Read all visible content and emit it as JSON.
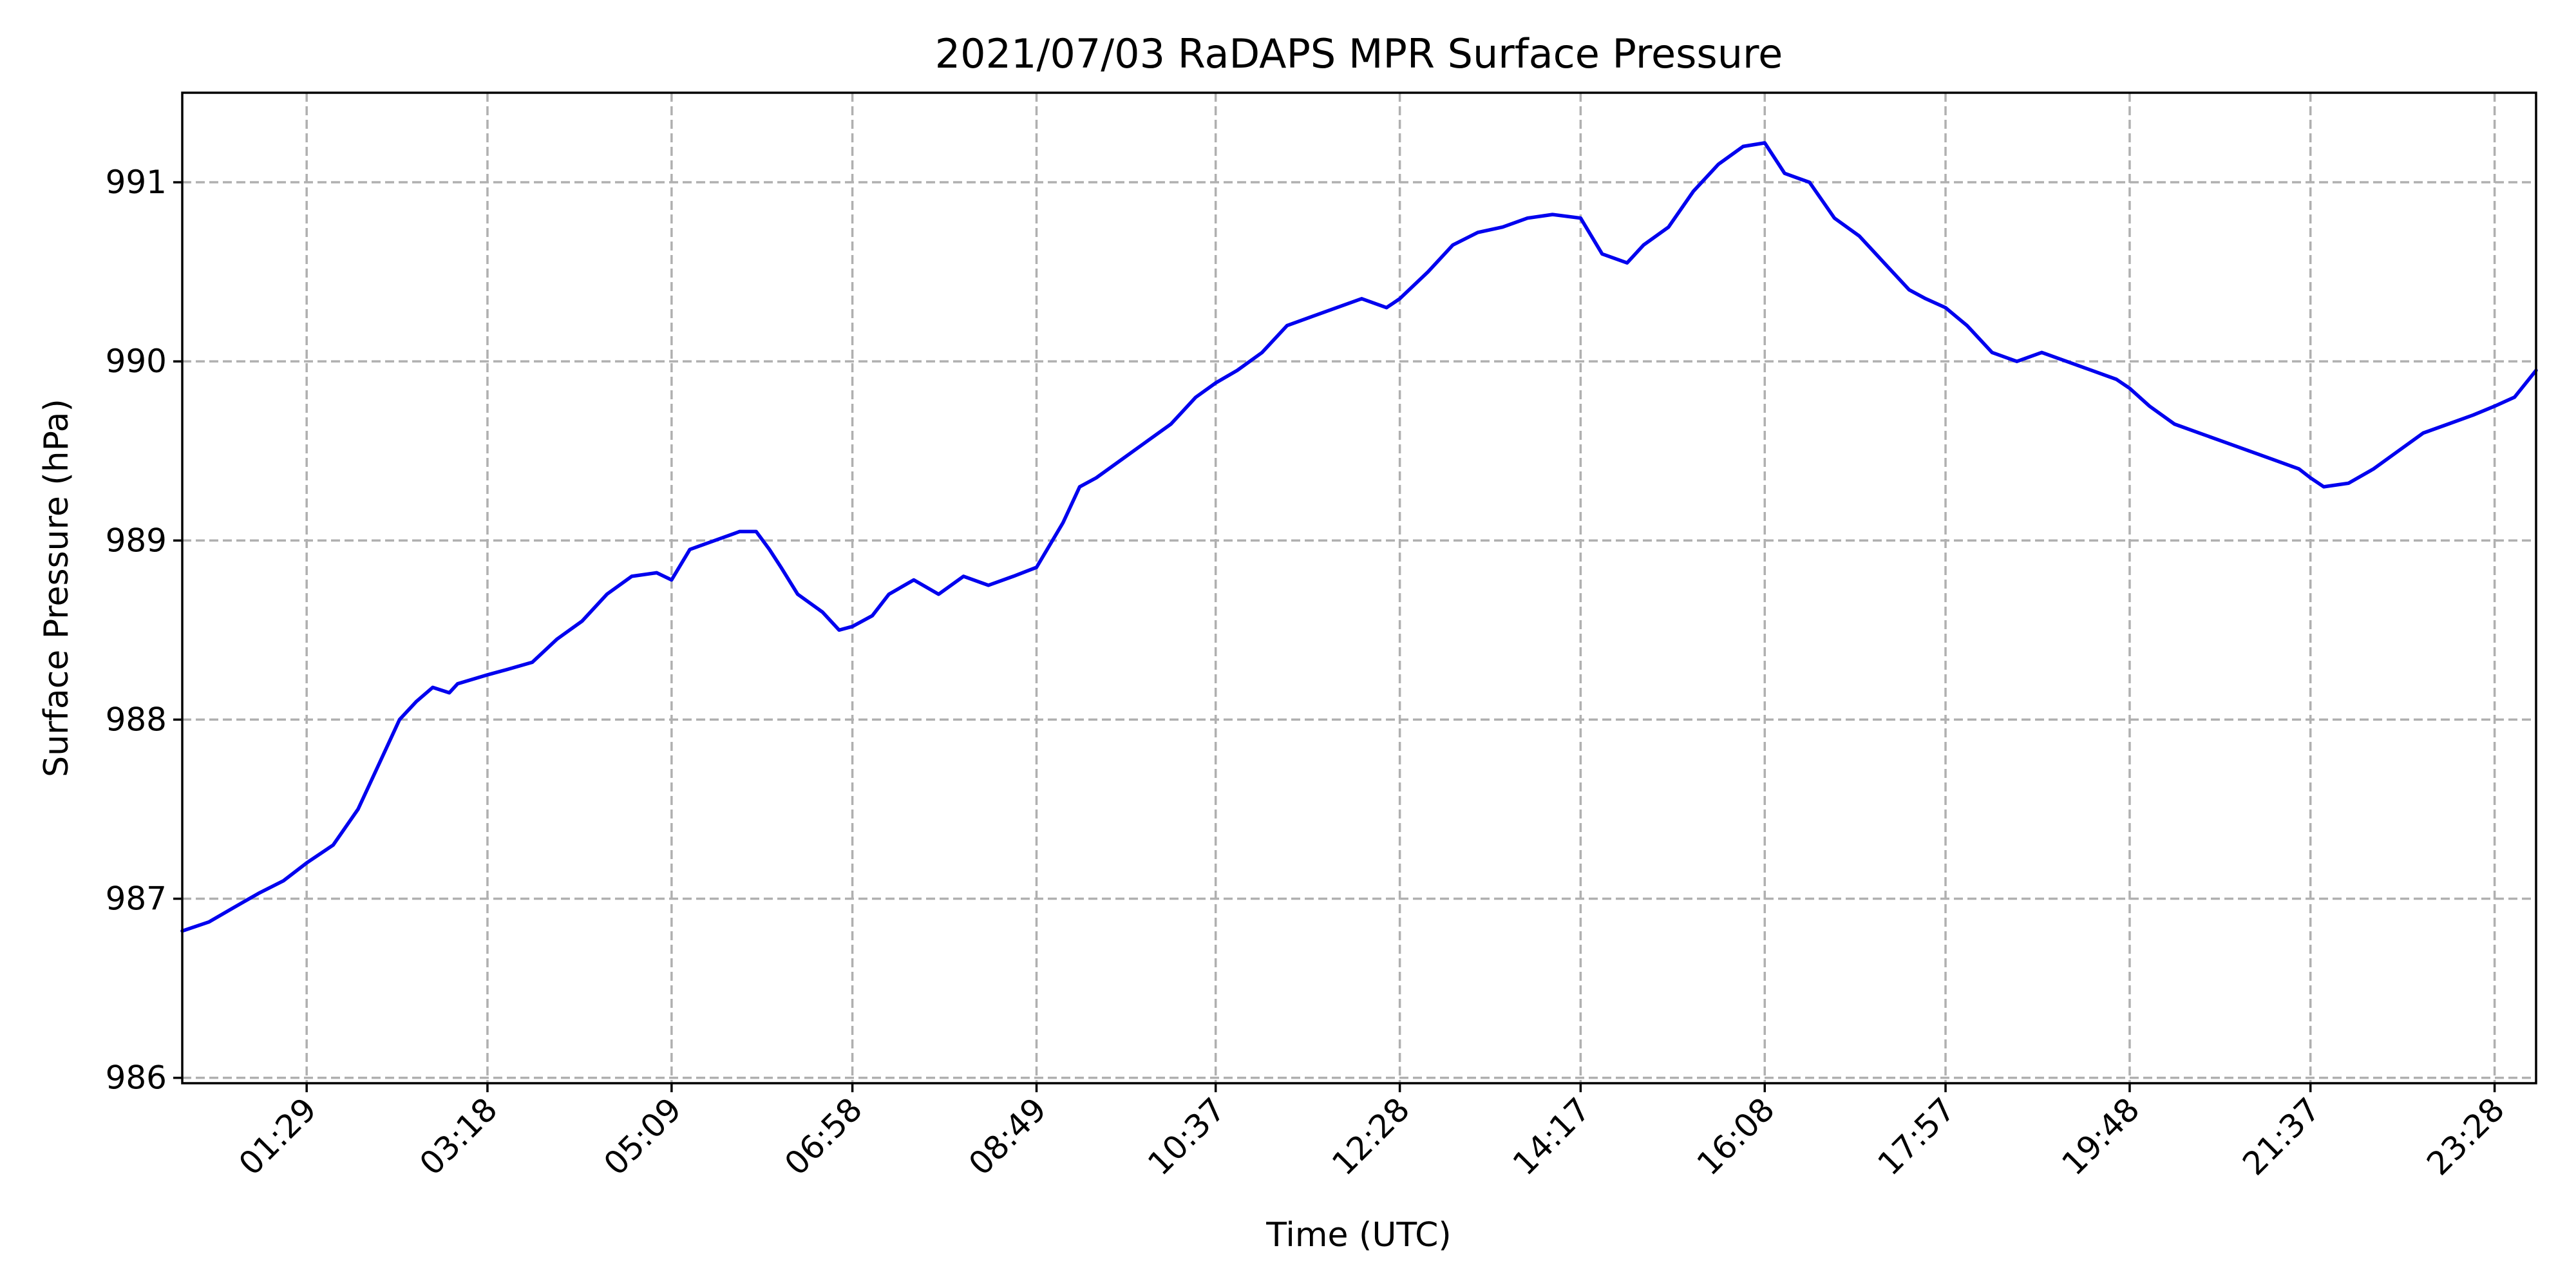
{
  "chart_data": {
    "type": "line",
    "title": "2021/07/03 RaDAPS MPR Surface Pressure",
    "xlabel": "Time (UTC)",
    "ylabel": "Surface Pressure (hPa)",
    "xlim": [
      "00:14",
      "23:53"
    ],
    "ylim": [
      985.97,
      991.5
    ],
    "grid": true,
    "legend": "none",
    "x_ticks": [
      "01:29",
      "03:18",
      "05:09",
      "06:58",
      "08:49",
      "10:37",
      "12:28",
      "14:17",
      "16:08",
      "17:57",
      "19:48",
      "21:37",
      "23:28"
    ],
    "y_ticks": [
      986,
      987,
      988,
      989,
      990,
      991
    ],
    "series": [
      {
        "color": "#0000ee",
        "x": [
          "00:14",
          "00:30",
          "00:45",
          "01:00",
          "01:15",
          "01:29",
          "01:45",
          "02:00",
          "02:15",
          "02:25",
          "02:35",
          "02:45",
          "02:55",
          "03:00",
          "03:18",
          "03:30",
          "03:45",
          "04:00",
          "04:15",
          "04:30",
          "04:45",
          "05:00",
          "05:09",
          "05:20",
          "05:35",
          "05:50",
          "06:00",
          "06:08",
          "06:15",
          "06:25",
          "06:40",
          "06:50",
          "06:58",
          "07:10",
          "07:20",
          "07:35",
          "07:50",
          "08:05",
          "08:20",
          "08:35",
          "08:49",
          "09:05",
          "09:15",
          "09:25",
          "09:40",
          "09:55",
          "10:10",
          "10:25",
          "10:37",
          "10:50",
          "11:05",
          "11:20",
          "11:35",
          "11:50",
          "12:05",
          "12:20",
          "12:28",
          "12:45",
          "13:00",
          "13:15",
          "13:30",
          "13:45",
          "14:00",
          "14:17",
          "14:30",
          "14:45",
          "14:55",
          "15:10",
          "15:25",
          "15:40",
          "15:55",
          "16:08",
          "16:20",
          "16:35",
          "16:50",
          "17:05",
          "17:20",
          "17:35",
          "17:45",
          "17:57",
          "18:10",
          "18:25",
          "18:40",
          "18:55",
          "19:10",
          "19:25",
          "19:40",
          "19:48",
          "20:00",
          "20:15",
          "20:30",
          "20:45",
          "21:00",
          "21:15",
          "21:30",
          "21:37",
          "21:45",
          "22:00",
          "22:15",
          "22:30",
          "22:45",
          "23:00",
          "23:15",
          "23:28",
          "23:40",
          "23:53"
        ],
        "values": [
          986.82,
          986.87,
          986.95,
          987.03,
          987.1,
          987.2,
          987.3,
          987.5,
          987.8,
          988.0,
          988.1,
          988.18,
          988.15,
          988.2,
          988.25,
          988.28,
          988.32,
          988.45,
          988.55,
          988.7,
          988.8,
          988.82,
          988.78,
          988.95,
          989.0,
          989.05,
          989.05,
          988.95,
          988.85,
          988.7,
          988.6,
          988.5,
          988.52,
          988.58,
          988.7,
          988.78,
          988.7,
          988.8,
          988.75,
          988.8,
          988.85,
          989.1,
          989.3,
          989.35,
          989.45,
          989.55,
          989.65,
          989.8,
          989.88,
          989.95,
          990.05,
          990.2,
          990.25,
          990.3,
          990.35,
          990.3,
          990.35,
          990.5,
          990.65,
          990.72,
          990.75,
          990.8,
          990.82,
          990.8,
          990.6,
          990.55,
          990.65,
          990.75,
          990.95,
          991.1,
          991.2,
          991.22,
          991.05,
          991.0,
          990.8,
          990.7,
          990.55,
          990.4,
          990.35,
          990.3,
          990.2,
          990.05,
          990.0,
          990.05,
          990.0,
          989.95,
          989.9,
          989.85,
          989.75,
          989.65,
          989.6,
          989.55,
          989.5,
          989.45,
          989.4,
          989.35,
          989.3,
          989.32,
          989.4,
          989.5,
          989.6,
          989.65,
          989.7,
          989.75,
          989.8,
          989.95
        ]
      }
    ]
  }
}
